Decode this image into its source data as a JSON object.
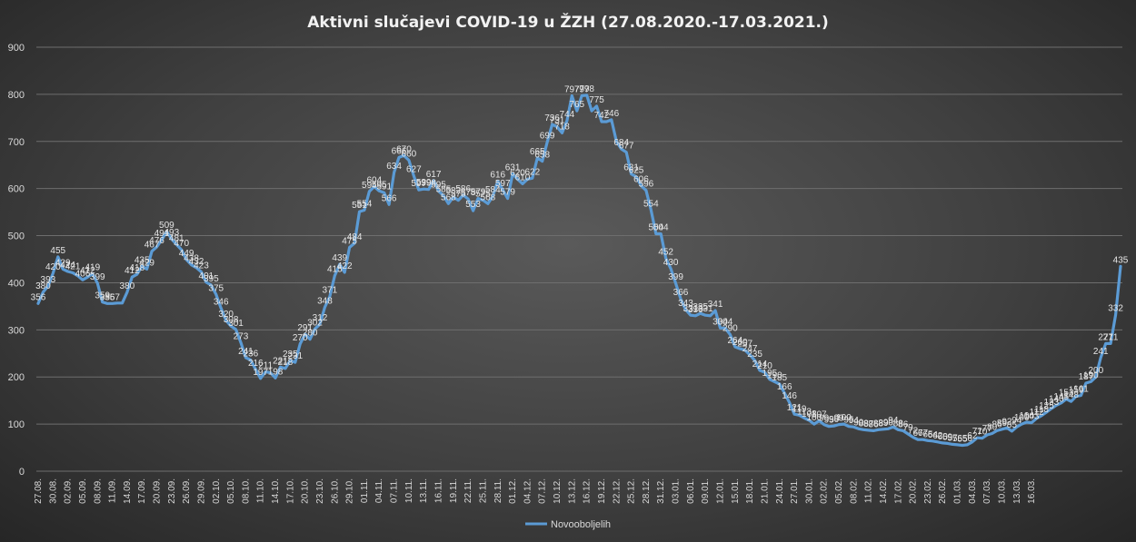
{
  "chart_data": {
    "type": "line",
    "title": "Aktivni  slučajevi  COVID-19  u  ŽZH (27.08.2020.-17.03.2021.)",
    "xlabel": "",
    "ylabel": "",
    "ylim": [
      0,
      900
    ],
    "yticks": [
      "0",
      "100",
      "200",
      "300",
      "400",
      "500",
      "600",
      "700",
      "800",
      "900"
    ],
    "grid": true,
    "legend": "bottom",
    "line_color": "#5b9bd5",
    "x_tick_labels": [
      "27.08.",
      "30.08.",
      "02.09.",
      "05.09.",
      "08.09.",
      "11.09.",
      "14.09.",
      "17.09.",
      "20.09.",
      "23.09.",
      "26.09.",
      "29.09.",
      "02.10.",
      "05.10.",
      "08.10.",
      "11.10.",
      "14.10.",
      "17.10.",
      "20.10.",
      "23.10.",
      "26.10.",
      "29.10.",
      "01.11.",
      "04.11.",
      "07.11.",
      "10.11.",
      "13.11.",
      "16.11.",
      "19.11.",
      "22.11.",
      "25.11.",
      "28.11.",
      "01.12.",
      "04.12.",
      "07.12.",
      "10.12.",
      "13.12.",
      "16.12.",
      "19.12.",
      "22.12.",
      "25.12.",
      "28.12.",
      "31.12.",
      "03.01.",
      "06.01.",
      "09.01.",
      "12.01.",
      "15.01.",
      "18.01.",
      "21.01.",
      "24.01.",
      "27.01.",
      "30.01.",
      "02.02.",
      "05.02.",
      "08.02.",
      "11.02.",
      "14.02.",
      "17.02.",
      "20.02.",
      "23.02.",
      "26.02.",
      "01.03.",
      "04.03.",
      "07.03.",
      "10.03.",
      "13.03.",
      "16.03."
    ],
    "series": [
      {
        "name": "Novooboljelih",
        "values": [
          356,
          380,
          393,
          420,
          455,
          429,
          424,
          421,
          415,
          406,
          412,
          419,
          399,
          359,
          356,
          356,
          357,
          357,
          380,
          412,
          418,
          435,
          429,
          467,
          476,
          491,
          509,
          493,
          481,
          470,
          449,
          438,
          432,
          423,
          401,
          395,
          375,
          346,
          320,
          308,
          301,
          273,
          241,
          236,
          216,
          197,
          211,
          209,
          198,
          221,
          218,
          235,
          231,
          270,
          291,
          280,
          302,
          312,
          348,
          371,
          415,
          439,
          422,
          475,
          484,
          551,
          554,
          594,
          604,
          595,
          591,
          566,
          634,
          666,
          670,
          660,
          627,
          597,
          599,
          598,
          617,
          595,
          585,
          568,
          582,
          575,
          586,
          578,
          553,
          579,
          575,
          568,
          584,
          616,
          597,
          579,
          631,
          620,
          610,
          620,
          622,
          665,
          658,
          699,
          736,
          731,
          718,
          744,
          797,
          765,
          797,
          798,
          765,
          775,
          742,
          742,
          746,
          700,
          684,
          677,
          631,
          625,
          606,
          596,
          554,
          504,
          504,
          452,
          430,
          399,
          366,
          343,
          331,
          330,
          335,
          331,
          330,
          341,
          304,
          304,
          290,
          264,
          260,
          257,
          247,
          235,
          214,
          210,
          195,
          190,
          185,
          166,
          146,
          121,
          119,
          113,
          108,
          100,
          107,
          99,
          95,
          96,
          99,
          100,
          95,
          94,
          90,
          88,
          87,
          86,
          88,
          89,
          90,
          94,
          88,
          86,
          79,
          72,
          67,
          67,
          65,
          64,
          62,
          60,
          59,
          57,
          56,
          55,
          56,
          62,
          71,
          70,
          77,
          80,
          86,
          89,
          92,
          85,
          94,
          100,
          104,
          103,
          112,
          118,
          125,
          133,
          140,
          145,
          153,
          148,
          159,
          161,
          187,
          190,
          200,
          241,
          271,
          271,
          332,
          435
        ]
      }
    ],
    "data_labels": [
      [
        0,
        "356"
      ],
      [
        1,
        "380"
      ],
      [
        2,
        "393"
      ],
      [
        3,
        "420"
      ],
      [
        4,
        "455"
      ],
      [
        5,
        "429"
      ],
      [
        6,
        "424"
      ],
      [
        7,
        "421"
      ],
      [
        9,
        "406"
      ],
      [
        10,
        "412"
      ],
      [
        11,
        "419"
      ],
      [
        12,
        "399"
      ],
      [
        13,
        "359"
      ],
      [
        14,
        "356"
      ],
      [
        15,
        "357"
      ],
      [
        18,
        "380"
      ],
      [
        19,
        "412"
      ],
      [
        20,
        "418"
      ],
      [
        21,
        "435"
      ],
      [
        22,
        "429"
      ],
      [
        23,
        "467"
      ],
      [
        24,
        "476"
      ],
      [
        25,
        "491"
      ],
      [
        26,
        "509"
      ],
      [
        27,
        "493"
      ],
      [
        28,
        "481"
      ],
      [
        29,
        "470"
      ],
      [
        30,
        "449"
      ],
      [
        31,
        "438"
      ],
      [
        32,
        "432"
      ],
      [
        33,
        "423"
      ],
      [
        34,
        "401"
      ],
      [
        35,
        "395"
      ],
      [
        36,
        "375"
      ],
      [
        37,
        "346"
      ],
      [
        38,
        "320"
      ],
      [
        39,
        "308"
      ],
      [
        40,
        "301"
      ],
      [
        41,
        "273"
      ],
      [
        42,
        "241"
      ],
      [
        43,
        "236"
      ],
      [
        44,
        "216"
      ],
      [
        45,
        "197"
      ],
      [
        46,
        "211"
      ],
      [
        48,
        "198"
      ],
      [
        49,
        "221"
      ],
      [
        50,
        "218"
      ],
      [
        51,
        "235"
      ],
      [
        52,
        "231"
      ],
      [
        53,
        "270"
      ],
      [
        54,
        "291"
      ],
      [
        55,
        "280"
      ],
      [
        56,
        "302"
      ],
      [
        57,
        "312"
      ],
      [
        58,
        "348"
      ],
      [
        59,
        "371"
      ],
      [
        60,
        "415"
      ],
      [
        61,
        "439"
      ],
      [
        62,
        "422"
      ],
      [
        63,
        "475"
      ],
      [
        64,
        "484"
      ],
      [
        65,
        "551"
      ],
      [
        66,
        "554"
      ],
      [
        67,
        "594"
      ],
      [
        68,
        "604"
      ],
      [
        69,
        "595"
      ],
      [
        70,
        "591"
      ],
      [
        71,
        "566"
      ],
      [
        72,
        "634"
      ],
      [
        73,
        "666"
      ],
      [
        74,
        "670"
      ],
      [
        75,
        "660"
      ],
      [
        76,
        "627"
      ],
      [
        77,
        "597"
      ],
      [
        78,
        "599"
      ],
      [
        79,
        "598"
      ],
      [
        80,
        "617"
      ],
      [
        81,
        "595"
      ],
      [
        82,
        "585"
      ],
      [
        83,
        "568"
      ],
      [
        84,
        "582"
      ],
      [
        85,
        "575"
      ],
      [
        86,
        "586"
      ],
      [
        87,
        "578"
      ],
      [
        88,
        "553"
      ],
      [
        89,
        "579"
      ],
      [
        90,
        "575"
      ],
      [
        91,
        "568"
      ],
      [
        92,
        "584"
      ],
      [
        93,
        "616"
      ],
      [
        94,
        "597"
      ],
      [
        95,
        "579"
      ],
      [
        96,
        "631"
      ],
      [
        97,
        "620"
      ],
      [
        98,
        "610"
      ],
      [
        100,
        "622"
      ],
      [
        101,
        "665"
      ],
      [
        102,
        "658"
      ],
      [
        103,
        "699"
      ],
      [
        104,
        "736"
      ],
      [
        105,
        "731"
      ],
      [
        106,
        "718"
      ],
      [
        107,
        "744"
      ],
      [
        108,
        "797"
      ],
      [
        109,
        "765"
      ],
      [
        110,
        "797"
      ],
      [
        111,
        "798"
      ],
      [
        113,
        "775"
      ],
      [
        114,
        "742"
      ],
      [
        116,
        "746"
      ],
      [
        118,
        "684"
      ],
      [
        119,
        "677"
      ],
      [
        120,
        "631"
      ],
      [
        121,
        "625"
      ],
      [
        122,
        "606"
      ],
      [
        123,
        "596"
      ],
      [
        124,
        "554"
      ],
      [
        125,
        "504"
      ],
      [
        126,
        "504"
      ],
      [
        127,
        "452"
      ],
      [
        128,
        "430"
      ],
      [
        129,
        "399"
      ],
      [
        130,
        "366"
      ],
      [
        131,
        "343"
      ],
      [
        132,
        "331"
      ],
      [
        133,
        "330"
      ],
      [
        134,
        "335"
      ],
      [
        135,
        "331"
      ],
      [
        137,
        "341"
      ],
      [
        138,
        "304"
      ],
      [
        139,
        "304"
      ],
      [
        140,
        "290"
      ],
      [
        141,
        "264"
      ],
      [
        142,
        "260"
      ],
      [
        143,
        "257"
      ],
      [
        144,
        "247"
      ],
      [
        145,
        "235"
      ],
      [
        146,
        "214"
      ],
      [
        147,
        "210"
      ],
      [
        148,
        "195"
      ],
      [
        149,
        "190"
      ],
      [
        150,
        "185"
      ],
      [
        151,
        "166"
      ],
      [
        152,
        "146"
      ],
      [
        153,
        "121"
      ],
      [
        154,
        "119"
      ],
      [
        155,
        "113"
      ],
      [
        156,
        "108"
      ],
      [
        157,
        "100"
      ],
      [
        158,
        "107"
      ],
      [
        159,
        "99"
      ],
      [
        160,
        "95"
      ],
      [
        161,
        "96"
      ],
      [
        162,
        "99"
      ],
      [
        163,
        "100"
      ],
      [
        164,
        "95"
      ],
      [
        165,
        "94"
      ],
      [
        166,
        "90"
      ],
      [
        167,
        "88"
      ],
      [
        168,
        "87"
      ],
      [
        169,
        "86"
      ],
      [
        170,
        "88"
      ],
      [
        171,
        "89"
      ],
      [
        172,
        "90"
      ],
      [
        173,
        "94"
      ],
      [
        174,
        "88"
      ],
      [
        175,
        "86"
      ],
      [
        176,
        "79"
      ],
      [
        177,
        "72"
      ],
      [
        178,
        "67"
      ],
      [
        179,
        "67"
      ],
      [
        180,
        "65"
      ],
      [
        181,
        "64"
      ],
      [
        182,
        "62"
      ],
      [
        183,
        "60"
      ],
      [
        184,
        "59"
      ],
      [
        185,
        "57"
      ],
      [
        186,
        "56"
      ],
      [
        187,
        "55"
      ],
      [
        188,
        "56"
      ],
      [
        189,
        "62"
      ],
      [
        190,
        "71"
      ],
      [
        191,
        "70"
      ],
      [
        192,
        "77"
      ],
      [
        193,
        "80"
      ],
      [
        194,
        "86"
      ],
      [
        195,
        "89"
      ],
      [
        196,
        "92"
      ],
      [
        197,
        "85"
      ],
      [
        198,
        "94"
      ],
      [
        199,
        "100"
      ],
      [
        200,
        "104"
      ],
      [
        201,
        "103"
      ],
      [
        202,
        "112"
      ],
      [
        203,
        "118"
      ],
      [
        204,
        "125"
      ],
      [
        205,
        "133"
      ],
      [
        206,
        "140"
      ],
      [
        207,
        "145"
      ],
      [
        208,
        "153"
      ],
      [
        209,
        "148"
      ],
      [
        210,
        "159"
      ],
      [
        211,
        "161"
      ],
      [
        212,
        "187"
      ],
      [
        213,
        "190"
      ],
      [
        214,
        "200"
      ],
      [
        215,
        "241"
      ],
      [
        216,
        "271"
      ],
      [
        217,
        "271"
      ],
      [
        218,
        "332"
      ],
      [
        219,
        "435"
      ]
    ]
  }
}
